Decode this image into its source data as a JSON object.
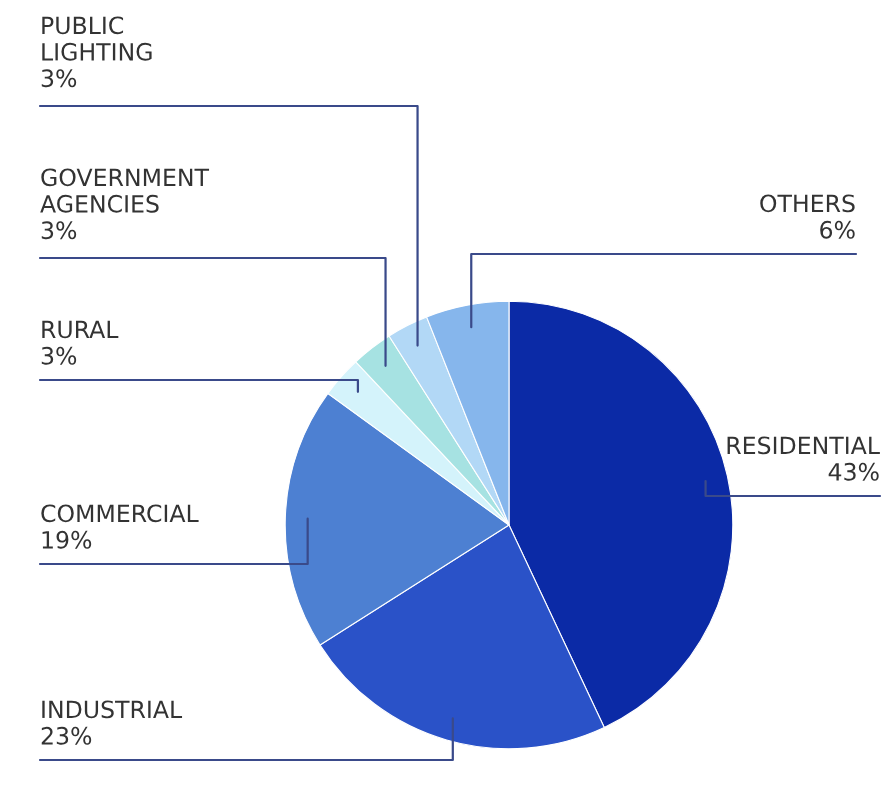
{
  "chart_data": {
    "type": "pie",
    "categories": [
      "RESIDENTIAL",
      "INDUSTRIAL",
      "COMMERCIAL",
      "RURAL",
      "GOVERNMENT AGENCIES",
      "PUBLIC LIGHTING",
      "OTHERS"
    ],
    "values": [
      43,
      23,
      19,
      3,
      3,
      3,
      6
    ],
    "value_labels": [
      "43%",
      "23%",
      "19%",
      "3%",
      "3%",
      "3%",
      "6%"
    ],
    "colors": [
      "#0b2aa6",
      "#2a52c8",
      "#4d80d2",
      "#d4f3fb",
      "#a6e2e2",
      "#b2d8f6",
      "#86b6ec"
    ],
    "legend": false
  }
}
